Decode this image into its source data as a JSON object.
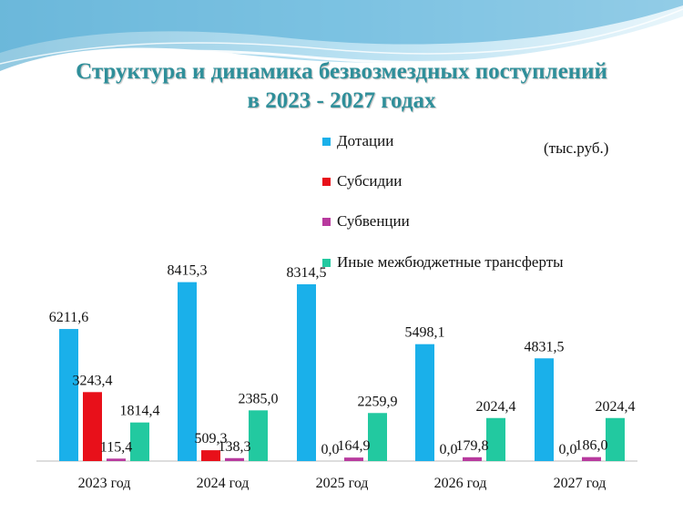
{
  "header": {
    "title_line1": "Структура и динамика безвозмездных поступлений",
    "title_line2": "в 2023 - 2027 годах",
    "units": "(тыс.руб.)"
  },
  "colors": {
    "Дотации": "#1ab0ea",
    "Субсидии": "#e8101a",
    "Субвенции": "#b83a9e",
    "Иные межбюджетные трансферты": "#22c9a0",
    "title": "#2f8f9a"
  },
  "chart_data": {
    "type": "bar",
    "title": "Структура и динамика безвозмездных поступлений в 2023 - 2027 годах",
    "ylabel": "",
    "xlabel": "",
    "ylim": [
      0,
      9000
    ],
    "grid": false,
    "legend": "top-right",
    "categories": [
      "2023 год",
      "2024 год",
      "2025 год",
      "2026 год",
      "2027 год"
    ],
    "series": [
      {
        "name": "Дотации",
        "values": [
          6211.6,
          8415.3,
          8314.5,
          5498.1,
          4831.5
        ],
        "labels": [
          "6211,6",
          "8415,3",
          "8314,5",
          "5498,1",
          "4831,5"
        ]
      },
      {
        "name": "Субсидии",
        "values": [
          3243.4,
          509.3,
          0.0,
          0.0,
          0.0
        ],
        "labels": [
          "3243,4",
          "509,3",
          "0,0",
          "0,0",
          "0,0"
        ]
      },
      {
        "name": "Субвенции",
        "values": [
          115.4,
          138.3,
          164.9,
          179.8,
          186.0
        ],
        "labels": [
          "115,4",
          "138,3",
          "164,9",
          "179,8",
          "186,0"
        ]
      },
      {
        "name": "Иные межбюджетные трансферты",
        "values": [
          1814.4,
          2385.0,
          2259.9,
          2024.4,
          2024.4
        ],
        "labels": [
          "1814,4",
          "2385,0",
          "2259,9",
          "2024,4",
          "2024,4"
        ]
      }
    ]
  }
}
